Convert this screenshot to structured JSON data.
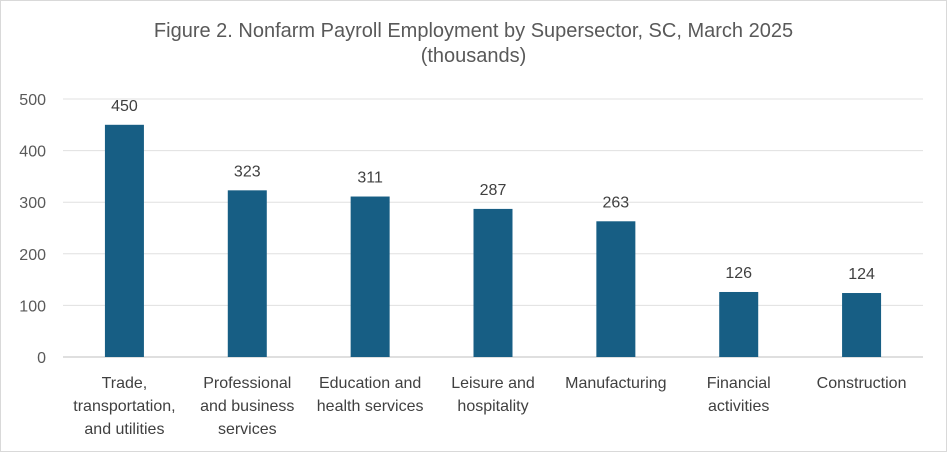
{
  "chart_data": {
    "type": "bar",
    "title_line1": "Figure 2. Nonfarm Payroll Employment by Supersector, SC, March 2025",
    "title_line2": "(thousands)",
    "categories": [
      [
        "Trade,",
        "transportation,",
        "and utilities"
      ],
      [
        "Professional",
        "and business",
        "services"
      ],
      [
        "Education and",
        "health services"
      ],
      [
        "Leisure and",
        "hospitality"
      ],
      [
        "Manufacturing"
      ],
      [
        "Financial",
        "activities"
      ],
      [
        "Construction"
      ]
    ],
    "values": [
      450,
      323,
      311,
      287,
      263,
      126,
      124
    ],
    "ylim": [
      0,
      500
    ],
    "yticks": [
      0,
      100,
      200,
      300,
      400,
      500
    ],
    "grid": true,
    "legend": "none",
    "bar_color": "#175E84",
    "grid_color": "#e0e0e0",
    "axis_color": "#bfbfbf"
  }
}
